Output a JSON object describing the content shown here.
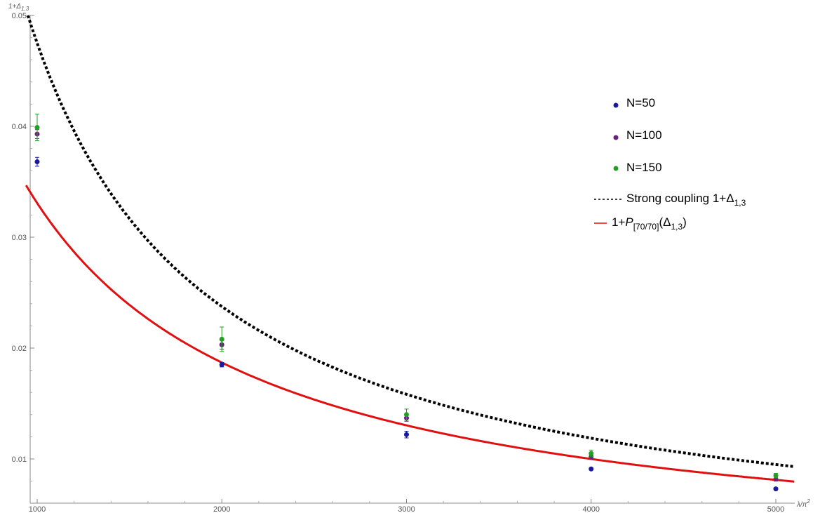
{
  "chart_data": {
    "type": "scatter",
    "xlabel": "λ/π²",
    "ylabel": "1+Δ1,3",
    "xlim": [
      950,
      5100
    ],
    "ylim": [
      0.0058,
      0.0505
    ],
    "x_ticks": [
      1000,
      2000,
      3000,
      4000,
      5000
    ],
    "x_tick_labels": [
      "1000",
      "2000",
      "3000",
      "4000",
      "5000"
    ],
    "y_ticks": [
      0.01,
      0.02,
      0.03,
      0.04,
      0.05
    ],
    "y_tick_labels": [
      "0.01",
      "0.02",
      "0.03",
      "0.04",
      "0.05"
    ],
    "grid": false,
    "legend_position": "top-right",
    "series": [
      {
        "name": "N=50",
        "kind": "points",
        "color": "#1a1aa0",
        "x": [
          1000,
          2000,
          3000,
          4000,
          5000
        ],
        "y": [
          0.0368,
          0.0185,
          0.0122,
          0.0091,
          0.0073
        ],
        "err": [
          0.0004,
          0.0002,
          0.0003,
          0.0001,
          0.0001
        ]
      },
      {
        "name": "N=100",
        "kind": "points",
        "color": "#6b2080",
        "x": [
          1000,
          2000,
          3000,
          4000,
          5000
        ],
        "y": [
          0.0393,
          0.0203,
          0.0137,
          0.0102,
          0.0082
        ],
        "err": [
          0.0004,
          0.0004,
          0.0003,
          0.0002,
          0.0002
        ]
      },
      {
        "name": "N=150",
        "kind": "points",
        "color": "#22a022",
        "x": [
          1000,
          2000,
          3000,
          4000,
          5000
        ],
        "y": [
          0.0399,
          0.0208,
          0.014,
          0.0105,
          0.0085
        ],
        "err": [
          0.0012,
          0.0011,
          0.0005,
          0.0003,
          0.0002
        ]
      },
      {
        "name": "Strong coupling 1+Δ1,3",
        "kind": "dashed-curve",
        "color": "#000000",
        "formula_coeff": 47.5,
        "x_range": [
          950,
          5100
        ]
      },
      {
        "name": "1+P[70/70](Δ1,3)",
        "kind": "curve",
        "color": "#e01010",
        "formula_coeff": 43.0,
        "formula_offset": 300,
        "x_range": [
          940,
          5100
        ]
      }
    ],
    "legend": {
      "n50": "N=50",
      "n100": "N=100",
      "n150": "N=150",
      "strong_prefix": "Strong coupling 1+Δ",
      "strong_sub": "1,3",
      "pade_prefix": "1+",
      "pade_P": "P",
      "pade_sub": "[70/70]",
      "pade_delta": "(Δ",
      "pade_delta_sub": "1,3",
      "pade_close": ")"
    }
  }
}
